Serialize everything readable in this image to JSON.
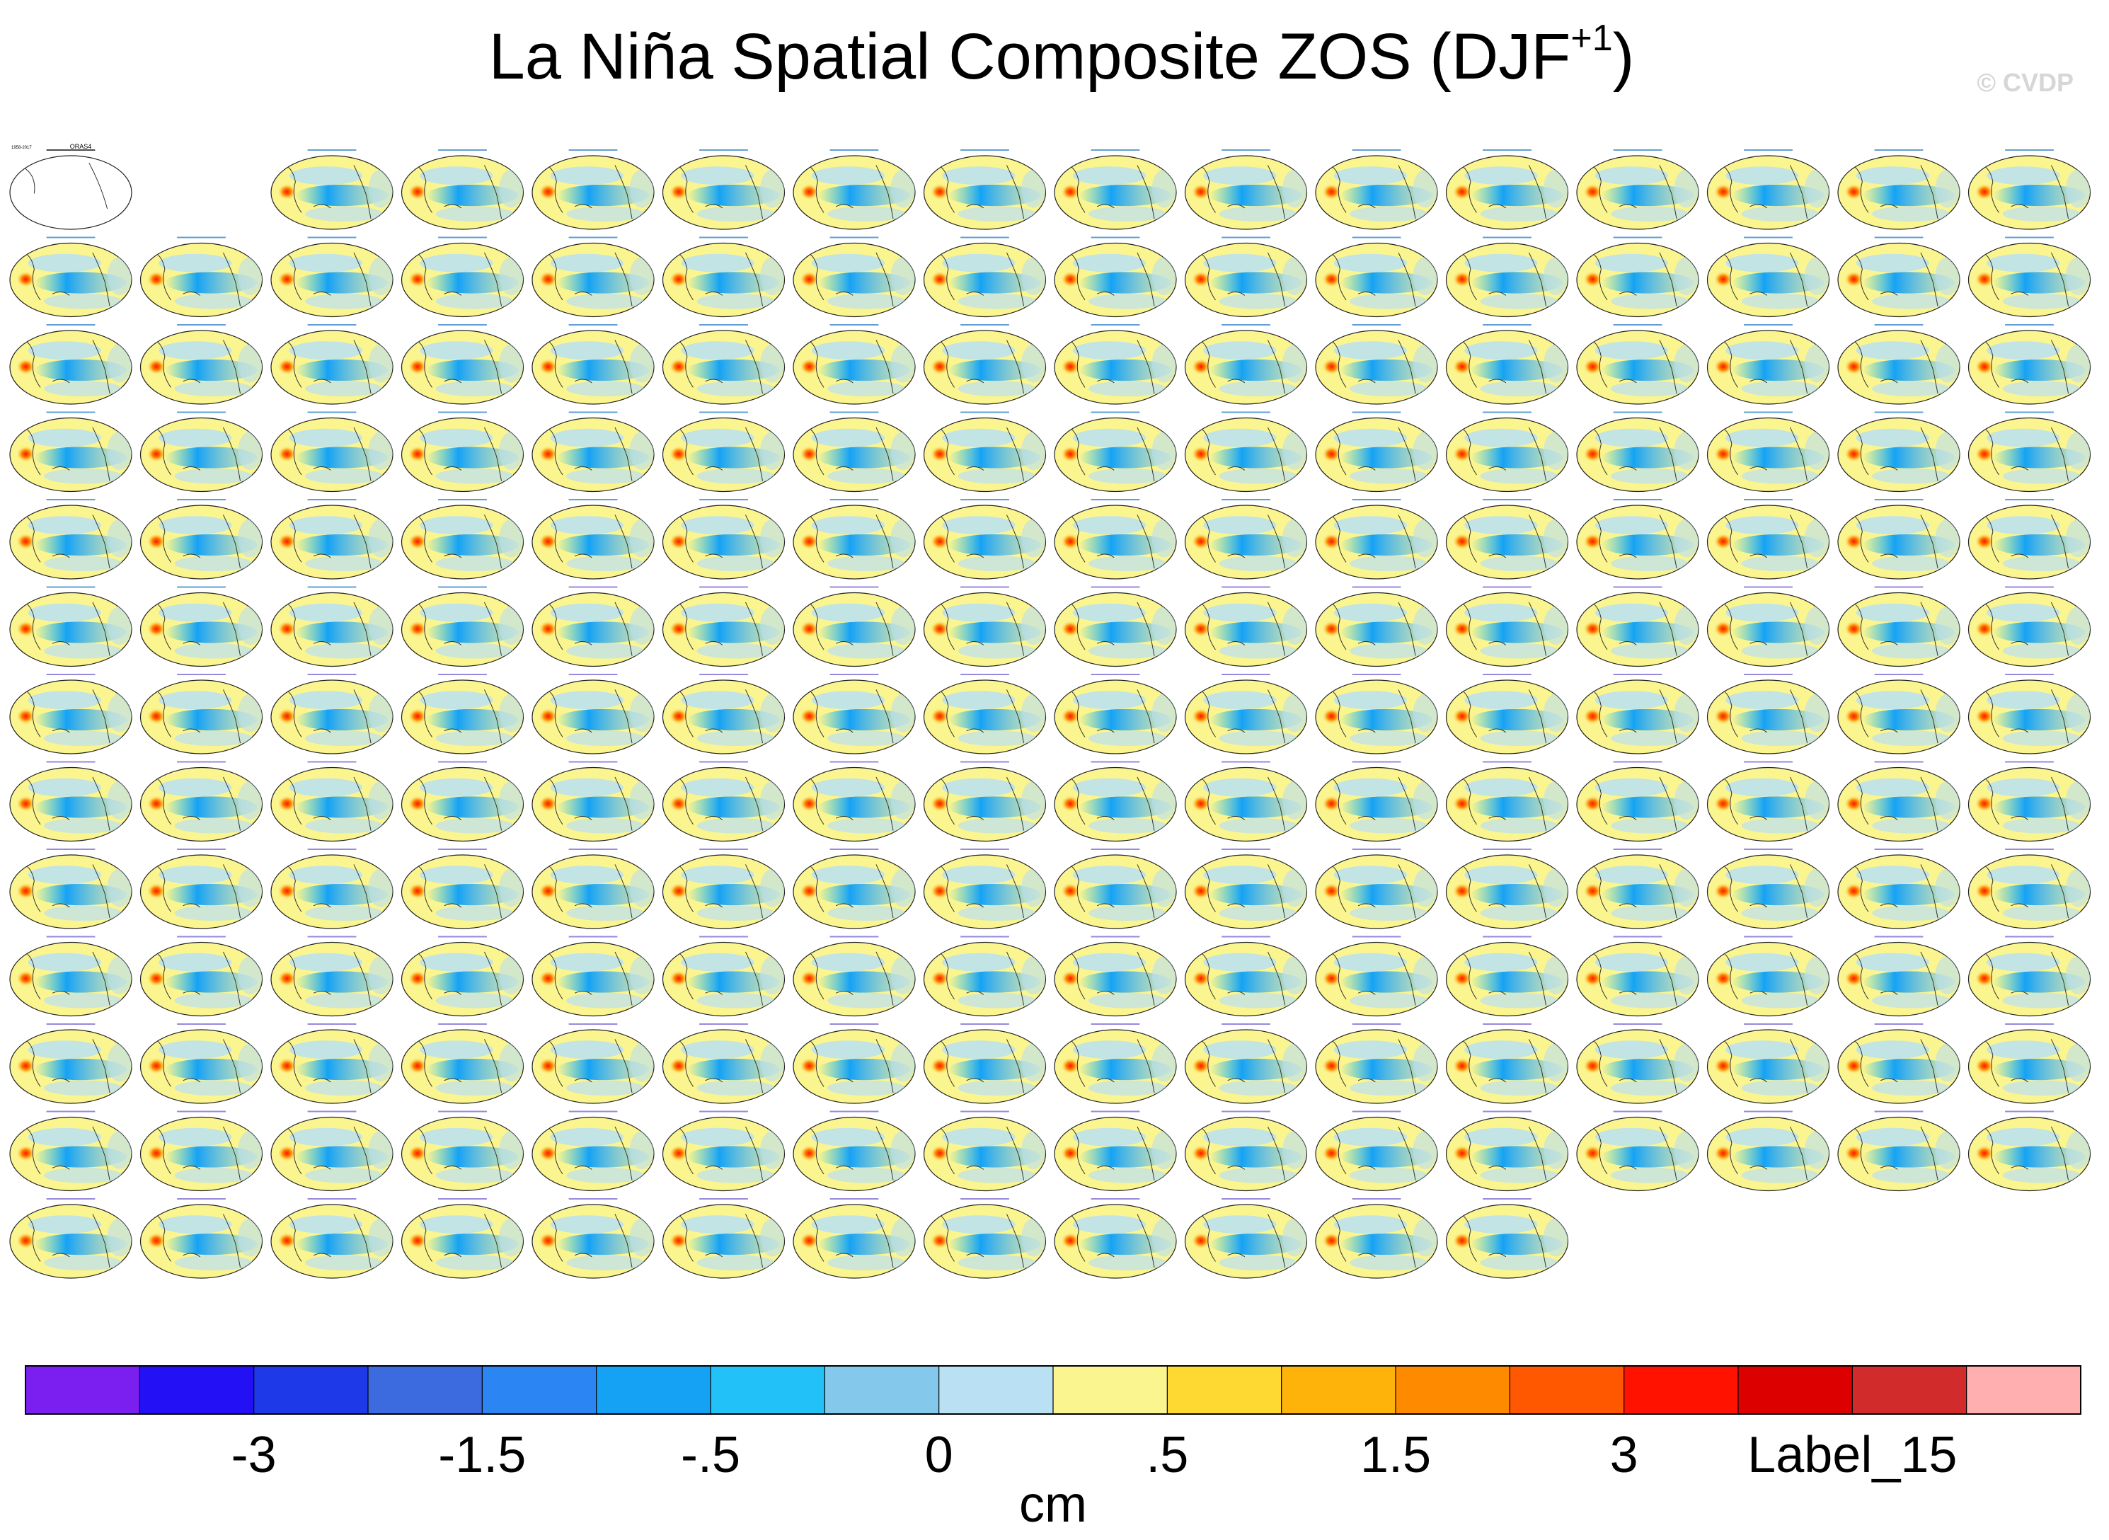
{
  "title": {
    "main": "La Niña Spatial Composite ZOS (DJF",
    "sup": "+1",
    "close": ")"
  },
  "credit": "© CVDP",
  "chart_data": {
    "type": "heatmap",
    "title": "La Niña Spatial Composite ZOS (DJF+1)",
    "panel_grid": {
      "rows": 13,
      "cols": 16,
      "total_panels": 203
    },
    "reference_panel": {
      "label": "ORAS4",
      "period": "1958-2017"
    },
    "model_groups": [
      "ACCESS-ESM1-5",
      "CESM1",
      "CESM2"
    ],
    "colorbar": {
      "unit": "cm",
      "colors": [
        "#7b1ff0",
        "#2410f5",
        "#1e3ae8",
        "#3b6bdf",
        "#2b85f3",
        "#15a2f5",
        "#22c1f8",
        "#84c8ec",
        "#b9e0f3",
        "#fbf58f",
        "#fed932",
        "#feb30a",
        "#fe8a00",
        "#ff5800",
        "#ff1200",
        "#dd0000",
        "#d12b2b",
        "#ffafaf"
      ],
      "tick_labels": [
        "-3",
        "-1.5",
        "-.5",
        "0",
        ".5",
        "1.5",
        "3",
        "Label_15"
      ]
    },
    "xlabel": "cm"
  }
}
